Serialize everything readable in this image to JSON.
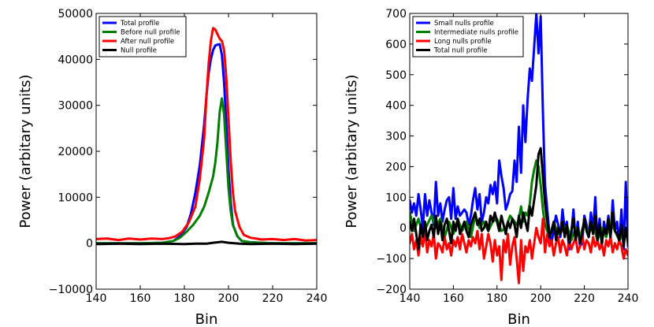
{
  "chart_data": [
    {
      "type": "line",
      "title": "",
      "xlabel": "Bin",
      "ylabel": "Power (arbitary units)",
      "xlim": [
        140,
        240
      ],
      "ylim": [
        -10000,
        50000
      ],
      "xticks": [
        "140",
        "160",
        "180",
        "200",
        "220",
        "240"
      ],
      "yticks": [
        "−10000",
        "0",
        "10000",
        "20000",
        "30000",
        "40000",
        "50000"
      ],
      "xtick_values": [
        140,
        160,
        180,
        200,
        220,
        240
      ],
      "ytick_values": [
        -10000,
        0,
        10000,
        20000,
        30000,
        40000,
        50000
      ],
      "legend_position": "top-left",
      "series": [
        {
          "name": "Total profile",
          "color": "#0000ff",
          "x": [
            140,
            150,
            160,
            170,
            175,
            178,
            181,
            183,
            185,
            187,
            189,
            190,
            191,
            192,
            193,
            194,
            195,
            196,
            197,
            198,
            199,
            200,
            201,
            202,
            204,
            206,
            210,
            220,
            230,
            240
          ],
          "y": [
            0,
            0,
            0,
            100,
            500,
            1500,
            3500,
            6500,
            11000,
            17000,
            26000,
            32000,
            37000,
            40000,
            42000,
            43000,
            43200,
            43300,
            41000,
            35000,
            26000,
            16000,
            9000,
            4000,
            1500,
            500,
            200,
            0,
            0,
            0
          ]
        },
        {
          "name": "Before null profile",
          "color": "#008000",
          "x": [
            140,
            150,
            160,
            170,
            175,
            178,
            181,
            184,
            187,
            189,
            191,
            193,
            194,
            195,
            196,
            197,
            198,
            199,
            200,
            201,
            202,
            204,
            206,
            210,
            220,
            230,
            240
          ],
          "y": [
            0,
            0,
            0,
            100,
            500,
            1200,
            2500,
            4000,
            6000,
            8000,
            11000,
            14500,
            17500,
            22000,
            28500,
            31500,
            28000,
            20000,
            12000,
            7000,
            4000,
            1500,
            500,
            200,
            0,
            0,
            0
          ]
        },
        {
          "name": "After null profile",
          "color": "#ff0000",
          "x": [
            140,
            145,
            150,
            155,
            160,
            165,
            170,
            173,
            176,
            179,
            182,
            185,
            187,
            189,
            190,
            191,
            192,
            193,
            194,
            195,
            196,
            197,
            198,
            199,
            200,
            201,
            202,
            203,
            205,
            207,
            210,
            215,
            220,
            225,
            230,
            235,
            240
          ],
          "y": [
            900,
            1000,
            700,
            1000,
            800,
            1000,
            900,
            1100,
            1500,
            2500,
            4500,
            8000,
            14000,
            23000,
            32000,
            39000,
            44000,
            46800,
            46500,
            45500,
            44500,
            44000,
            42000,
            36000,
            27000,
            18000,
            11000,
            7000,
            3500,
            1800,
            1200,
            800,
            900,
            700,
            900,
            600,
            700
          ]
        },
        {
          "name": "Null profile",
          "color": "#000000",
          "x": [
            140,
            150,
            160,
            170,
            180,
            185,
            190,
            193,
            195,
            197,
            200,
            205,
            210,
            220,
            230,
            240
          ],
          "y": [
            -200,
            -100,
            -200,
            -100,
            -200,
            -100,
            -100,
            100,
            200,
            300,
            100,
            -100,
            -200,
            -100,
            -200,
            -100
          ]
        }
      ]
    },
    {
      "type": "line",
      "title": "",
      "xlabel": "Bin",
      "ylabel": "Power (arbitary units)",
      "xlim": [
        140,
        240
      ],
      "ylim": [
        -200,
        700
      ],
      "xticks": [
        "140",
        "160",
        "180",
        "200",
        "220",
        "240"
      ],
      "yticks": [
        "−200",
        "−100",
        "0",
        "100",
        "200",
        "300",
        "400",
        "500",
        "600",
        "700"
      ],
      "xtick_values": [
        140,
        160,
        180,
        200,
        220,
        240
      ],
      "ytick_values": [
        -200,
        -100,
        0,
        100,
        200,
        300,
        400,
        500,
        600,
        700
      ],
      "legend_position": "top-left",
      "series": [
        {
          "name": "Small nulls profile",
          "color": "#0000ff",
          "x": [
            140,
            141,
            142,
            143,
            144,
            145,
            146,
            147,
            148,
            149,
            150,
            151,
            152,
            153,
            154,
            155,
            156,
            157,
            158,
            159,
            160,
            161,
            162,
            163,
            164,
            165,
            166,
            167,
            168,
            169,
            170,
            171,
            172,
            173,
            174,
            175,
            176,
            177,
            178,
            179,
            180,
            181,
            182,
            183,
            184,
            185,
            186,
            187,
            188,
            189,
            190,
            191,
            192,
            193,
            194,
            195,
            196,
            197,
            198,
            199,
            200,
            201,
            202,
            203,
            204,
            205,
            206,
            207,
            208,
            209,
            210,
            211,
            212,
            213,
            214,
            215,
            216,
            217,
            218,
            219,
            220,
            221,
            222,
            223,
            224,
            225,
            226,
            227,
            228,
            229,
            230,
            231,
            232,
            233,
            234,
            235,
            236,
            237,
            238,
            239,
            240
          ],
          "y": [
            90,
            50,
            80,
            40,
            110,
            60,
            0,
            110,
            40,
            90,
            50,
            10,
            150,
            40,
            80,
            20,
            60,
            90,
            100,
            30,
            130,
            30,
            70,
            40,
            50,
            60,
            50,
            10,
            40,
            90,
            130,
            60,
            110,
            20,
            50,
            100,
            80,
            140,
            110,
            150,
            80,
            220,
            170,
            130,
            60,
            80,
            110,
            120,
            220,
            150,
            330,
            180,
            400,
            280,
            420,
            520,
            480,
            590,
            700,
            570,
            690,
            380,
            140,
            60,
            -20,
            -50,
            0,
            40,
            10,
            -30,
            60,
            -10,
            20,
            -70,
            -20,
            60,
            -40,
            20,
            -60,
            -50,
            40,
            10,
            -30,
            50,
            -10,
            100,
            -40,
            30,
            -60,
            20,
            -20,
            40,
            -30,
            90,
            -10,
            20,
            -50,
            60,
            -70,
            150,
            -60
          ]
        },
        {
          "name": "Intermediate nulls profile",
          "color": "#008000",
          "x": [
            140,
            142,
            144,
            146,
            148,
            150,
            152,
            154,
            156,
            158,
            160,
            162,
            164,
            166,
            168,
            170,
            172,
            174,
            176,
            178,
            180,
            182,
            184,
            186,
            188,
            189,
            190,
            191,
            192,
            193,
            194,
            195,
            196,
            197,
            198,
            199,
            200,
            201,
            202,
            204,
            206,
            208,
            210,
            212,
            214,
            216,
            218,
            220,
            222,
            224,
            226,
            228,
            230,
            232,
            234,
            236,
            238,
            240
          ],
          "y": [
            50,
            -10,
            30,
            -20,
            10,
            40,
            0,
            30,
            -30,
            20,
            -20,
            30,
            -10,
            20,
            -30,
            40,
            0,
            20,
            -10,
            20,
            30,
            -10,
            0,
            40,
            20,
            10,
            30,
            70,
            20,
            50,
            40,
            80,
            150,
            190,
            220,
            200,
            140,
            60,
            10,
            -30,
            20,
            -20,
            -10,
            10,
            -40,
            0,
            -30,
            20,
            -20,
            10,
            -40,
            0,
            -30,
            20,
            -10,
            -40,
            -20,
            -30
          ]
        },
        {
          "name": "Long nulls profile",
          "color": "#ff0000",
          "x": [
            140,
            141,
            142,
            143,
            144,
            145,
            146,
            147,
            148,
            149,
            150,
            151,
            152,
            153,
            154,
            155,
            156,
            157,
            158,
            159,
            160,
            161,
            162,
            163,
            164,
            165,
            166,
            167,
            168,
            169,
            170,
            171,
            172,
            173,
            174,
            175,
            176,
            177,
            178,
            179,
            180,
            181,
            182,
            183,
            184,
            185,
            186,
            187,
            188,
            189,
            190,
            191,
            192,
            193,
            194,
            195,
            196,
            197,
            198,
            199,
            200,
            201,
            202,
            203,
            204,
            205,
            206,
            207,
            208,
            209,
            210,
            211,
            212,
            213,
            214,
            215,
            216,
            217,
            218,
            219,
            220,
            221,
            222,
            223,
            224,
            225,
            226,
            227,
            228,
            229,
            230,
            231,
            232,
            233,
            234,
            235,
            236,
            237,
            238,
            239,
            240
          ],
          "y": [
            -50,
            -20,
            -70,
            -40,
            -90,
            -30,
            -60,
            -10,
            -80,
            -40,
            -60,
            -20,
            -100,
            -50,
            -60,
            -80,
            -30,
            -70,
            -50,
            -90,
            -40,
            -60,
            -30,
            -70,
            -20,
            -50,
            -80,
            -40,
            -60,
            -30,
            -50,
            -10,
            -70,
            -20,
            -100,
            -60,
            -20,
            -50,
            -110,
            -40,
            -90,
            -60,
            -170,
            -40,
            -80,
            -20,
            -120,
            -60,
            -30,
            -100,
            -180,
            -40,
            -140,
            -60,
            -80,
            -40,
            -100,
            -50,
            0,
            -30,
            -50,
            30,
            -80,
            -20,
            -60,
            -40,
            -90,
            -50,
            -30,
            -80,
            -40,
            -60,
            -90,
            -40,
            -70,
            -50,
            -30,
            -80,
            -60,
            -20,
            -70,
            -40,
            -50,
            -80,
            -30,
            -60,
            -40,
            -70,
            -50,
            -90,
            -40,
            -60,
            -30,
            -80,
            -50,
            -70,
            -40,
            -60,
            -100,
            -70,
            -90
          ]
        },
        {
          "name": "Total null profile",
          "color": "#000000",
          "x": [
            140,
            141,
            142,
            143,
            144,
            145,
            146,
            147,
            148,
            149,
            150,
            151,
            152,
            153,
            154,
            155,
            156,
            157,
            158,
            159,
            160,
            161,
            162,
            163,
            164,
            165,
            166,
            167,
            168,
            169,
            170,
            171,
            172,
            173,
            174,
            175,
            176,
            177,
            178,
            179,
            180,
            181,
            182,
            183,
            184,
            185,
            186,
            187,
            188,
            189,
            190,
            191,
            192,
            193,
            194,
            195,
            196,
            197,
            198,
            199,
            200,
            201,
            202,
            203,
            204,
            205,
            206,
            207,
            208,
            209,
            210,
            211,
            212,
            213,
            214,
            215,
            216,
            217,
            218,
            219,
            220,
            221,
            222,
            223,
            224,
            225,
            226,
            227,
            228,
            229,
            230,
            231,
            232,
            233,
            234,
            235,
            236,
            237,
            238,
            239,
            240
          ],
          "y": [
            20,
            -10,
            30,
            -20,
            -70,
            10,
            -30,
            20,
            -40,
            -10,
            10,
            -30,
            40,
            -20,
            20,
            -40,
            10,
            30,
            -10,
            -50,
            20,
            -10,
            30,
            -20,
            0,
            20,
            -10,
            -30,
            10,
            30,
            50,
            10,
            30,
            -10,
            0,
            20,
            -10,
            40,
            20,
            50,
            20,
            -10,
            40,
            10,
            -20,
            20,
            0,
            30,
            10,
            -30,
            40,
            0,
            50,
            20,
            -10,
            70,
            40,
            90,
            140,
            240,
            260,
            170,
            80,
            20,
            -30,
            -10,
            20,
            -40,
            0,
            -20,
            20,
            -30,
            10,
            -50,
            -10,
            30,
            -40,
            0,
            -50,
            -20,
            30,
            -10,
            -30,
            20,
            -20,
            40,
            -40,
            10,
            -50,
            0,
            -20,
            30,
            -30,
            50,
            -10,
            -20,
            -40,
            10,
            -60,
            0,
            -50
          ]
        }
      ]
    }
  ]
}
